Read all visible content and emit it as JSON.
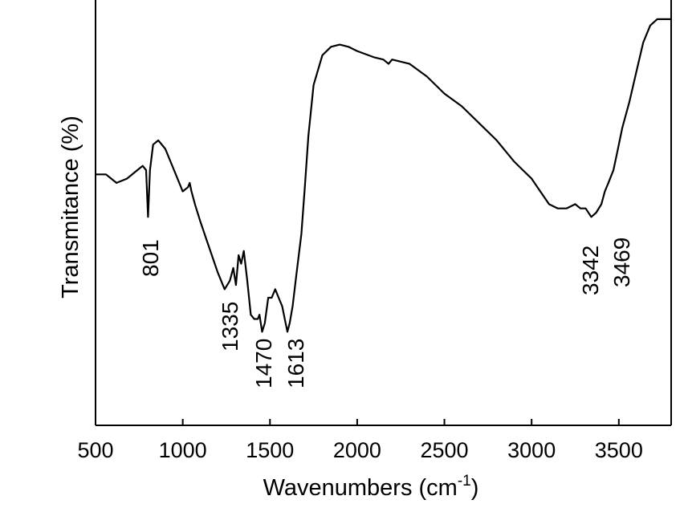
{
  "chart_data": {
    "type": "line",
    "xlabel": "Wavenumbers (cm",
    "xlabel_sup": "-1",
    "xlabel_end": ")",
    "ylabel": "Transmitance (%)",
    "xlim": [
      500,
      3800
    ],
    "ylim": [
      0,
      100
    ],
    "grid": false,
    "x_ticks": [
      500,
      1000,
      1500,
      2000,
      2500,
      3000,
      3500
    ],
    "x_tick_labels": [
      "500",
      "1000",
      "1500",
      "2000",
      "2500",
      "3000",
      "3500"
    ],
    "series": [
      {
        "x": [
          500,
          560,
          620,
          680,
          740,
          770,
          790,
          801,
          812,
          830,
          860,
          900,
          950,
          1000,
          1030,
          1040,
          1050,
          1070,
          1100,
          1150,
          1200,
          1240,
          1270,
          1290,
          1305,
          1320,
          1335,
          1350,
          1370,
          1390,
          1410,
          1430,
          1440,
          1455,
          1470,
          1490,
          1510,
          1530,
          1550,
          1570,
          1590,
          1600,
          1613,
          1630,
          1650,
          1680,
          1700,
          1720,
          1750,
          1800,
          1850,
          1900,
          1950,
          2000,
          2100,
          2150,
          2180,
          2200,
          2300,
          2400,
          2500,
          2600,
          2700,
          2800,
          2900,
          2950,
          3000,
          3050,
          3100,
          3150,
          3200,
          3250,
          3280,
          3310,
          3342,
          3370,
          3400,
          3420,
          3440,
          3469,
          3490,
          3520,
          3560,
          3600,
          3640,
          3680,
          3720,
          3760,
          3800
        ],
        "y": [
          59,
          59,
          57,
          58,
          60,
          61,
          60,
          49,
          60,
          66,
          67,
          65,
          60,
          55,
          56,
          57,
          55,
          52,
          48,
          42,
          36,
          32,
          34,
          37,
          33,
          40,
          38,
          41,
          34,
          26,
          25,
          25,
          26,
          22,
          24,
          30,
          30,
          32,
          30,
          28,
          24,
          22,
          24,
          28,
          35,
          45,
          56,
          68,
          80,
          87,
          89,
          89.5,
          89,
          88,
          86.5,
          86,
          85,
          86,
          85,
          82,
          78,
          75,
          71,
          67,
          62,
          60,
          58,
          55,
          52,
          51,
          51,
          52,
          51,
          51,
          49,
          50,
          52,
          55,
          57,
          60,
          64,
          70,
          76,
          83,
          90,
          94,
          95.5,
          95.5,
          95.5
        ]
      }
    ],
    "annotations": [
      {
        "text": "801",
        "x": 801
      },
      {
        "text": "1335",
        "x": 1335
      },
      {
        "text": "1470",
        "x": 1470
      },
      {
        "text": "1613",
        "x": 1613
      },
      {
        "text": "3342",
        "x": 3342
      },
      {
        "text": "3469",
        "x": 3469
      }
    ]
  }
}
